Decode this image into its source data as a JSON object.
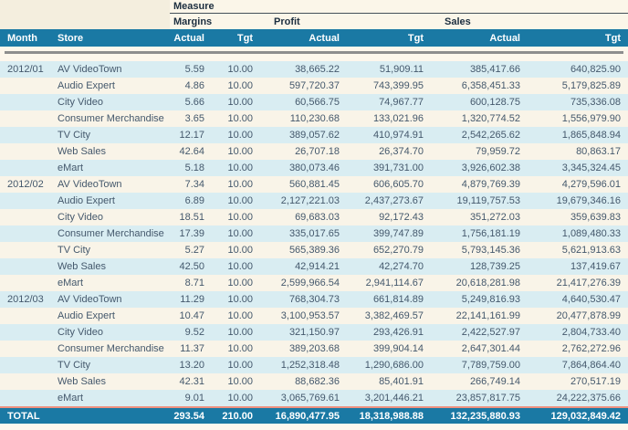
{
  "table": {
    "measure_label": "Measure",
    "groups": [
      {
        "label": "Margins"
      },
      {
        "label": "Profit"
      },
      {
        "label": "Sales"
      }
    ],
    "columns": {
      "month": "Month",
      "store": "Store",
      "actual": "Actual",
      "tgt": "Tgt"
    },
    "rows": [
      {
        "month": "2012/01",
        "store": "AV VideoTown",
        "values": [
          "5.59",
          "10.00",
          "38,665.22",
          "51,909.11",
          "385,417.66",
          "640,825.90"
        ]
      },
      {
        "month": "",
        "store": "Audio Expert",
        "values": [
          "4.86",
          "10.00",
          "597,720.37",
          "743,399.95",
          "6,358,451.33",
          "5,179,825.89"
        ]
      },
      {
        "month": "",
        "store": "City Video",
        "values": [
          "5.66",
          "10.00",
          "60,566.75",
          "74,967.77",
          "600,128.75",
          "735,336.08"
        ]
      },
      {
        "month": "",
        "store": "Consumer Merchandise",
        "values": [
          "3.65",
          "10.00",
          "110,230.68",
          "133,021.96",
          "1,320,774.52",
          "1,556,979.90"
        ]
      },
      {
        "month": "",
        "store": "TV City",
        "values": [
          "12.17",
          "10.00",
          "389,057.62",
          "410,974.91",
          "2,542,265.62",
          "1,865,848.94"
        ]
      },
      {
        "month": "",
        "store": "Web Sales",
        "values": [
          "42.64",
          "10.00",
          "26,707.18",
          "26,374.70",
          "79,959.72",
          "80,863.17"
        ]
      },
      {
        "month": "",
        "store": "eMart",
        "values": [
          "5.18",
          "10.00",
          "380,073.46",
          "391,731.00",
          "3,926,602.38",
          "3,345,324.45"
        ]
      },
      {
        "month": "2012/02",
        "store": "AV VideoTown",
        "values": [
          "7.34",
          "10.00",
          "560,881.45",
          "606,605.70",
          "4,879,769.39",
          "4,279,596.01"
        ]
      },
      {
        "month": "",
        "store": "Audio Expert",
        "values": [
          "6.89",
          "10.00",
          "2,127,221.03",
          "2,437,273.67",
          "19,119,757.53",
          "19,679,346.16"
        ]
      },
      {
        "month": "",
        "store": "City Video",
        "values": [
          "18.51",
          "10.00",
          "69,683.03",
          "92,172.43",
          "351,272.03",
          "359,639.83"
        ]
      },
      {
        "month": "",
        "store": "Consumer Merchandise",
        "values": [
          "17.39",
          "10.00",
          "335,017.65",
          "399,747.89",
          "1,756,181.19",
          "1,089,480.33"
        ]
      },
      {
        "month": "",
        "store": "TV City",
        "values": [
          "5.27",
          "10.00",
          "565,389.36",
          "652,270.79",
          "5,793,145.36",
          "5,621,913.63"
        ]
      },
      {
        "month": "",
        "store": "Web Sales",
        "values": [
          "42.50",
          "10.00",
          "42,914.21",
          "42,274.70",
          "128,739.25",
          "137,419.67"
        ]
      },
      {
        "month": "",
        "store": "eMart",
        "values": [
          "8.71",
          "10.00",
          "2,599,966.54",
          "2,941,114.67",
          "20,618,281.98",
          "21,417,276.39"
        ]
      },
      {
        "month": "2012/03",
        "store": "AV VideoTown",
        "values": [
          "11.29",
          "10.00",
          "768,304.73",
          "661,814.89",
          "5,249,816.93",
          "4,640,530.47"
        ]
      },
      {
        "month": "",
        "store": "Audio Expert",
        "values": [
          "10.47",
          "10.00",
          "3,100,953.57",
          "3,382,469.57",
          "22,141,161.99",
          "20,477,878.99"
        ]
      },
      {
        "month": "",
        "store": "City Video",
        "values": [
          "9.52",
          "10.00",
          "321,150.97",
          "293,426.91",
          "2,422,527.97",
          "2,804,733.40"
        ]
      },
      {
        "month": "",
        "store": "Consumer Merchandise",
        "values": [
          "11.37",
          "10.00",
          "389,203.68",
          "399,904.14",
          "2,647,301.44",
          "2,762,272.96"
        ]
      },
      {
        "month": "",
        "store": "TV City",
        "values": [
          "13.20",
          "10.00",
          "1,252,318.48",
          "1,290,686.00",
          "7,789,759.00",
          "7,864,864.40"
        ]
      },
      {
        "month": "",
        "store": "Web Sales",
        "values": [
          "42.31",
          "10.00",
          "88,682.36",
          "85,401.91",
          "266,749.14",
          "270,517.19"
        ]
      },
      {
        "month": "",
        "store": "eMart",
        "values": [
          "9.01",
          "10.00",
          "3,065,769.61",
          "3,201,446.21",
          "23,857,817.75",
          "24,222,375.66"
        ]
      }
    ],
    "total": {
      "label": "TOTAL",
      "values": [
        "293.54",
        "210.00",
        "16,890,477.95",
        "18,318,988.88",
        "132,235,880.93",
        "129,032,849.42"
      ]
    }
  },
  "colors": {
    "header_teal": "#1a79a4",
    "header_text": "#ffffff",
    "group_label_text": "#1c2e3f",
    "row_alt_blue": "#d9edf2",
    "row_alt_cream": "#f9f4e8",
    "corner_beige": "#f4eede",
    "header_cream": "#fbf6e9",
    "page_cream": "#fdf7ec",
    "data_text": "#44586c",
    "total_separator_salmon": "#ee9180",
    "separator_gray": "#8e8e8e"
  }
}
